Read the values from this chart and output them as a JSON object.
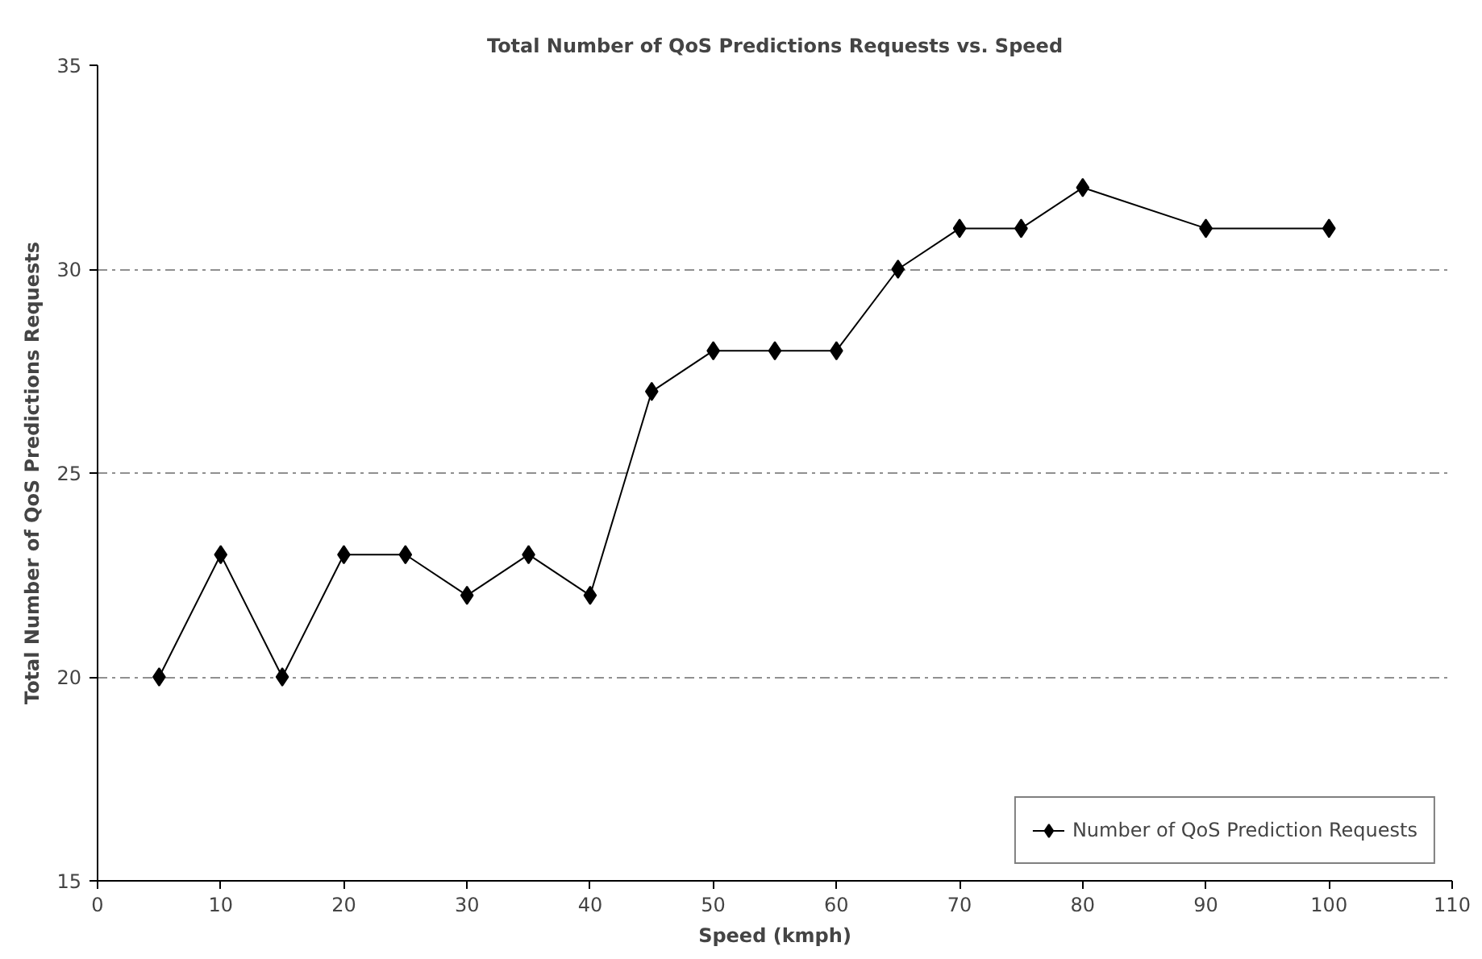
{
  "chart_data": {
    "type": "line",
    "title": "Total Number of QoS Predictions Requests vs. Speed",
    "xlabel": "Speed (kmph)",
    "ylabel": "Total Number of QoS Predictions Requests",
    "x": [
      5,
      10,
      15,
      20,
      25,
      30,
      35,
      40,
      45,
      50,
      55,
      60,
      65,
      70,
      75,
      80,
      90,
      100
    ],
    "series": [
      {
        "name": "Number of QoS Prediction Requests",
        "color": "#000000",
        "values": [
          20,
          23,
          20,
          23,
          23,
          22,
          23,
          22,
          27,
          28,
          28,
          28,
          30,
          31,
          31,
          32,
          31,
          31
        ]
      }
    ],
    "xlim": [
      0,
      110
    ],
    "xticks": [
      0,
      10,
      20,
      30,
      40,
      50,
      60,
      70,
      80,
      90,
      100,
      110
    ],
    "ylim": [
      15,
      35
    ],
    "yticks": [
      15,
      20,
      25,
      30,
      35
    ],
    "grid": "y",
    "legend": "bottom right",
    "marker": "diamond",
    "line_style": "solid"
  }
}
